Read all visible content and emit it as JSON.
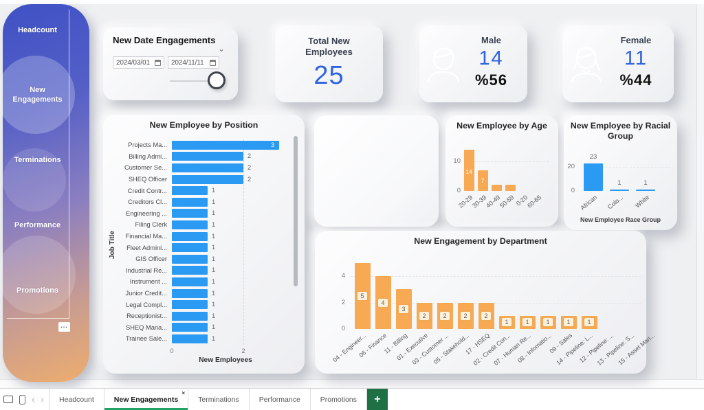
{
  "colors": {
    "accent_blue": "#2f62dd",
    "bar_blue": "#2b9af3",
    "bar_orange": "#f7a953",
    "value_box_fill": "#fdf1dc",
    "tab_active_green": "#21a366",
    "add_button_green": "#1f7145"
  },
  "sidebar": {
    "items": [
      {
        "label": "Headcount",
        "active": false
      },
      {
        "label": "New Engagements",
        "active": true
      },
      {
        "label": "Terminations",
        "active": false
      },
      {
        "label": "Performance",
        "active": false
      },
      {
        "label": "Promotions",
        "active": false
      }
    ],
    "more_label": "..."
  },
  "filters": {
    "title": "New Date Engagements",
    "start_date": "2024/03/01",
    "end_date": "2024/11/11"
  },
  "kpis": {
    "total": {
      "title": "Total New Employees",
      "value": "25"
    },
    "male": {
      "title": "Male",
      "value": "14",
      "percent": "%56"
    },
    "female": {
      "title": "Female",
      "value": "11",
      "percent": "%44"
    }
  },
  "chart_data": [
    {
      "type": "bar",
      "orientation": "horizontal",
      "title": "New Employee by Position",
      "xlabel": "New Employees",
      "ylabel": "Job Title",
      "x_ticks": [
        0,
        2
      ],
      "xlim": [
        0,
        3
      ],
      "grid": "dashed-at-2",
      "bar_color": "#2b9af3",
      "categories": [
        "Projects Ma...",
        "Billing Admi...",
        "Customer Se...",
        "SHEQ Officer",
        "Credit Contr...",
        "Creditors Cl...",
        "Engineering ...",
        "Filing Clerk",
        "Financial Ma...",
        "Fleet Admini...",
        "GIS Officer",
        "Industrial Re...",
        "Instrument ...",
        "Junior Credit...",
        "Legal Compl...",
        "Receptionist...",
        "SHEQ Mana...",
        "Trainee Sale..."
      ],
      "values": [
        3,
        2,
        2,
        2,
        1,
        1,
        1,
        1,
        1,
        1,
        1,
        1,
        1,
        1,
        1,
        1,
        1,
        1
      ]
    },
    {
      "type": "bar",
      "title": "New Employee by Age",
      "categories": [
        "20-29",
        "30-39",
        "40-49",
        "50-59",
        "0-20",
        "60-65"
      ],
      "values": [
        14,
        7,
        2,
        2,
        0,
        0
      ],
      "y_ticks": [
        0,
        10
      ],
      "ylim": [
        0,
        15
      ],
      "bar_color": "#f7a953"
    },
    {
      "type": "bar",
      "title": "New Employee by Racial Group",
      "xlabel": "New Employee Race Group",
      "categories": [
        "African",
        "Colo...",
        "White"
      ],
      "values": [
        23,
        1,
        1
      ],
      "y_ticks": [
        0,
        20
      ],
      "ylim": [
        0,
        25
      ],
      "bar_color": "#2b9af3"
    },
    {
      "type": "bar",
      "title": "New Engagement by Department",
      "categories": [
        "04 - Engineer...",
        "06 - Finance",
        "11 - Billing",
        "01 - Executive",
        "03 - Customer ...",
        "05 - Stakehold...",
        "17 - HSEQ",
        "02 - Credit Con...",
        "07 - Human Re...",
        "08 - Infomatio...",
        "09 - Sales",
        "14 - Pipeline: L...",
        "12 - Pipeline: ...",
        "13 - Pipeline: S...",
        "15 - Asset Man..."
      ],
      "values": [
        5,
        4,
        3,
        2,
        2,
        2,
        2,
        1,
        1,
        1,
        1,
        1,
        0,
        0,
        0
      ],
      "y_ticks": [
        0,
        2,
        4
      ],
      "ylim": [
        0,
        5.5
      ],
      "bar_color": "#f7a953"
    }
  ],
  "sheet_tabs": {
    "tabs": [
      {
        "label": "Headcount",
        "active": false
      },
      {
        "label": "New Engagements",
        "active": true
      },
      {
        "label": "Terminations",
        "active": false
      },
      {
        "label": "Performance",
        "active": false
      },
      {
        "label": "Promotions",
        "active": false
      }
    ],
    "close_glyph": "×",
    "add_label": "+"
  },
  "icons": {
    "chevron": "⌄",
    "prev_arrow": "‹",
    "next_arrow": "›"
  }
}
